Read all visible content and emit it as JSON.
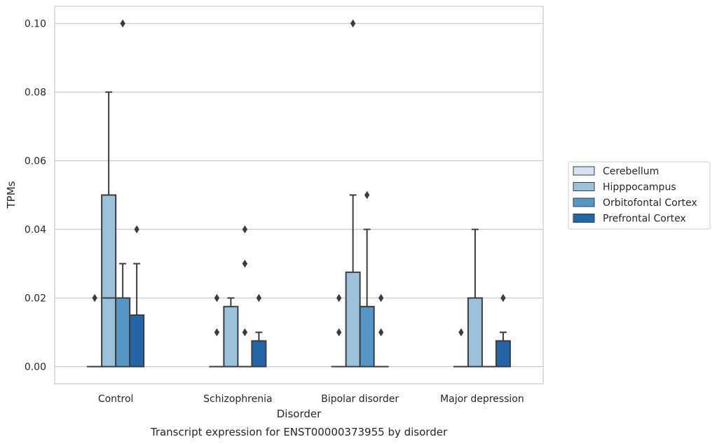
{
  "chart_data": {
    "type": "box",
    "caption": "Transcript expression for ENST00000373955 by disorder",
    "xlabel": "Disorder",
    "ylabel": "TPMs",
    "ylim": [
      -0.005,
      0.105
    ],
    "yticks": [
      0.0,
      0.02,
      0.04,
      0.06,
      0.08,
      0.1
    ],
    "ytick_labels": [
      "0.00",
      "0.02",
      "0.04",
      "0.06",
      "0.08",
      "0.10"
    ],
    "grid": true,
    "legend_placement": "right",
    "categories": [
      "Control",
      "Schizophrenia",
      "Bipolar disorder",
      "Major depression"
    ],
    "series": [
      {
        "name": "Cerebellum",
        "color": "#d4e3f1",
        "boxes": [
          {
            "q1": 0,
            "median": 0,
            "q3": 0,
            "whislo": 0,
            "whishi": 0,
            "fliers": [
              0.02
            ]
          },
          {
            "q1": 0,
            "median": 0,
            "q3": 0,
            "whislo": 0,
            "whishi": 0,
            "fliers": [
              0.01,
              0.02
            ]
          },
          {
            "q1": 0,
            "median": 0,
            "q3": 0,
            "whislo": 0,
            "whishi": 0,
            "fliers": [
              0.01,
              0.02
            ]
          },
          {
            "q1": 0,
            "median": 0,
            "q3": 0,
            "whislo": 0,
            "whishi": 0,
            "fliers": [
              0.01
            ]
          }
        ]
      },
      {
        "name": "Hipppocampus",
        "color": "#9ac2db",
        "boxes": [
          {
            "q1": 0,
            "median": 0.02,
            "q3": 0.05,
            "whislo": 0,
            "whishi": 0.08,
            "fliers": []
          },
          {
            "q1": 0,
            "median": 0,
            "q3": 0.0175,
            "whislo": 0,
            "whishi": 0.02,
            "fliers": []
          },
          {
            "q1": 0,
            "median": 0,
            "q3": 0.0275,
            "whislo": 0,
            "whishi": 0.05,
            "fliers": [
              0.1
            ]
          },
          {
            "q1": 0,
            "median": 0,
            "q3": 0.02,
            "whislo": 0,
            "whishi": 0.04,
            "fliers": []
          }
        ]
      },
      {
        "name": "Orbitofontal Cortex",
        "color": "#5496c6",
        "boxes": [
          {
            "q1": 0,
            "median": 0,
            "q3": 0.02,
            "whislo": 0,
            "whishi": 0.03,
            "fliers": [
              0.1
            ]
          },
          {
            "q1": 0,
            "median": 0,
            "q3": 0,
            "whislo": 0,
            "whishi": 0,
            "fliers": [
              0.01,
              0.03,
              0.04
            ]
          },
          {
            "q1": 0,
            "median": 0,
            "q3": 0.0175,
            "whislo": 0,
            "whishi": 0.04,
            "fliers": [
              0.05
            ]
          },
          {
            "q1": 0,
            "median": 0,
            "q3": 0,
            "whislo": 0,
            "whishi": 0,
            "fliers": []
          }
        ]
      },
      {
        "name": "Prefrontal Cortex",
        "color": "#2366a8",
        "boxes": [
          {
            "q1": 0,
            "median": 0,
            "q3": 0.015,
            "whislo": 0,
            "whishi": 0.03,
            "fliers": [
              0.04
            ]
          },
          {
            "q1": 0,
            "median": 0,
            "q3": 0.0075,
            "whislo": 0,
            "whishi": 0.01,
            "fliers": [
              0.02
            ]
          },
          {
            "q1": 0,
            "median": 0,
            "q3": 0,
            "whislo": 0,
            "whishi": 0,
            "fliers": [
              0.01,
              0.02
            ]
          },
          {
            "q1": 0,
            "median": 0,
            "q3": 0.0075,
            "whislo": 0,
            "whishi": 0.01,
            "fliers": [
              0.02
            ]
          }
        ]
      }
    ]
  }
}
